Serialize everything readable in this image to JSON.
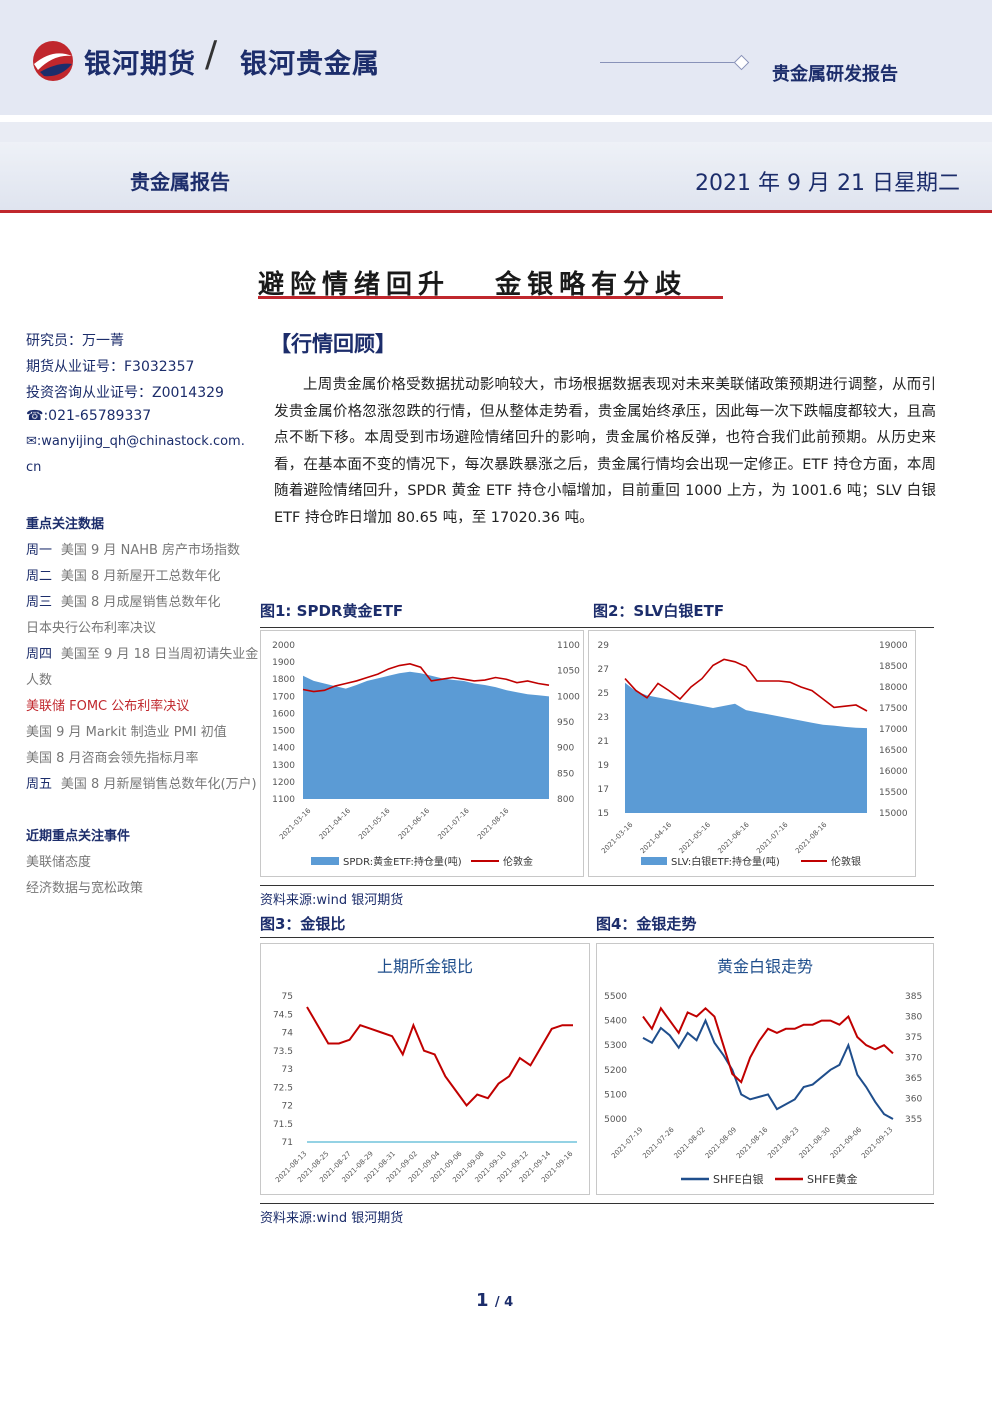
{
  "header": {
    "brand_main": "银河期货",
    "brand_sub": "银河贵金属",
    "report_type": "贵金属研发报告",
    "category": "贵金属报告",
    "date": "2021 年 9 月 21 日星期二"
  },
  "title": "避险情绪回升   金银略有分歧",
  "sidebar": {
    "researcher": "研究员：万一菁",
    "license": "期货从业证号：F3032357",
    "consult": "投资咨询从业证号：Z0014329",
    "phone": "☎:021-65789337",
    "email1": "✉:wanyijing_qh@chinastock.com.",
    "email2": "cn",
    "focus_head": "重点关注数据",
    "focus_items": [
      {
        "day": "周一",
        "text": "美国 9 月 NAHB 房产市场指数"
      },
      {
        "day": "周二",
        "text": "美国 8 月新屋开工总数年化"
      },
      {
        "day": "周三",
        "text": "美国 8 月成屋销售总数年化"
      },
      {
        "day": "",
        "text": "日本央行公布利率决议"
      },
      {
        "day": "周四",
        "text": "美国至 9 月 18 日当周初请失业金"
      },
      {
        "day": "",
        "text": "人数"
      },
      {
        "day": "",
        "text": "美联储 FOMC 公布利率决议"
      },
      {
        "day": "",
        "text": "美国 9 月 Markit 制造业 PMI 初值"
      },
      {
        "day": "",
        "text": "美国 8 月咨商会领先指标月率"
      },
      {
        "day": "周五",
        "text": "美国 8 月新屋销售总数年化(万户)"
      }
    ],
    "events_head": "近期重点关注事件",
    "events": [
      "美联储态度",
      "经济数据与宽松政策"
    ]
  },
  "section": {
    "title": "【行情回顾】",
    "paragraph": "上周贵金属价格受数据扰动影响较大，市场根据数据表现对未来美联储政策预期进行调整，从而引发贵金属价格忽涨忽跌的行情，但从整体走势看，贵金属始终承压，因此每一次下跌幅度都较大，且高点不断下移。本周受到市场避险情绪回升的影响，贵金属价格反弹，也符合我们此前预期。从历史来看，在基本面不变的情况下，每次暴跌暴涨之后，贵金属行情均会出现一定修正。ETF 持仓方面，本周随着避险情绪回升，SPDR 黄金 ETF 持仓小幅增加，目前重回 1000 上方，为 1001.6 吨；SLV 白银 ETF 持仓昨日增加 80.65 吨，至 17020.36 吨。"
  },
  "figures": {
    "fig1_label": "图1: SPDR黄金ETF",
    "fig2_label": "图2：SLV白银ETF",
    "fig3_label": "图3：金银比",
    "fig4_label": "图4：金银走势",
    "source1": "资料来源:wind    银河期货",
    "source2": "资料来源:wind    银河期货"
  },
  "chart_data": [
    {
      "type": "area+line",
      "series": [
        {
          "name": "SPDR:黄金ETF:持仓量(吨)",
          "axis": "left",
          "values": [
            1040,
            1030,
            1025,
            1020,
            1015,
            1022,
            1030,
            1035,
            1040,
            1045,
            1048,
            1045,
            1040,
            1035,
            1032,
            1030,
            1025,
            1022,
            1018,
            1012,
            1008,
            1004,
            1002,
            1000
          ]
        },
        {
          "name": "伦敦金",
          "axis": "right",
          "values": [
            1740,
            1728,
            1735,
            1760,
            1775,
            1790,
            1810,
            1830,
            1860,
            1880,
            1890,
            1870,
            1790,
            1800,
            1810,
            1800,
            1790,
            1795,
            1810,
            1800,
            1780,
            1790,
            1775,
            1765
          ]
        }
      ],
      "x_ticks": [
        "2021-03-16",
        "2021-04-16",
        "2021-05-16",
        "2021-06-16",
        "2021-07-16",
        "2021-08-16"
      ],
      "ylim_left": [
        1100,
        2000
      ],
      "left_ticks": [
        "2000",
        "1900",
        "1800",
        "1700",
        "1600",
        "1500",
        "1400",
        "1300",
        "1200",
        "1100"
      ],
      "right_ticks": [
        "1100",
        "1050",
        "1000",
        "950",
        "900",
        "850",
        "800"
      ]
    },
    {
      "type": "area+line",
      "series": [
        {
          "name": "SLV:白银ETF:持仓量(吨)",
          "axis": "right",
          "values": [
            18100,
            17900,
            17800,
            17750,
            17700,
            17650,
            17600,
            17550,
            17500,
            17550,
            17600,
            17450,
            17400,
            17350,
            17300,
            17250,
            17200,
            17150,
            17100,
            17080,
            17050,
            17030,
            17020
          ]
        },
        {
          "name": "伦敦银",
          "axis": "left",
          "values": [
            26.2,
            25.2,
            24.6,
            25.8,
            25.2,
            24.5,
            25.5,
            26.2,
            27.3,
            27.8,
            27.6,
            27.2,
            26.0,
            26.0,
            26.0,
            25.9,
            25.5,
            25.2,
            24.5,
            23.8,
            23.9,
            24.0,
            23.5
          ]
        }
      ],
      "x_ticks": [
        "2021-03-16",
        "2021-04-16",
        "2021-05-16",
        "2021-06-16",
        "2021-07-16",
        "2021-08-16"
      ],
      "left_ticks": [
        "29",
        "27",
        "25",
        "23",
        "21",
        "19",
        "17",
        "15"
      ],
      "right_ticks": [
        "19000",
        "18500",
        "18000",
        "17500",
        "17000",
        "16500",
        "16000",
        "15500",
        "15000"
      ],
      "ylim_left": [
        15,
        29
      ],
      "ylim_right": [
        15000,
        19000
      ]
    },
    {
      "type": "line",
      "title": "上期所金银比",
      "x_ticks": [
        "2021-08-13",
        "2021-08-25",
        "2021-08-27",
        "2021-08-29",
        "2021-08-31",
        "2021-09-02",
        "2021-09-04",
        "2021-09-06",
        "2021-09-08",
        "2021-09-10",
        "2021-09-12",
        "2021-09-14",
        "2021-09-16"
      ],
      "values": [
        74.7,
        74.2,
        73.7,
        73.7,
        73.8,
        74.2,
        74.1,
        74.0,
        73.9,
        73.4,
        74.2,
        73.5,
        73.4,
        72.8,
        72.4,
        72.0,
        72.3,
        72.2,
        72.6,
        72.8,
        73.3,
        73.1,
        73.6,
        74.1,
        74.2,
        74.2
      ],
      "ylim": [
        71,
        75
      ],
      "y_ticks": [
        "75",
        "74.5",
        "74",
        "73.5",
        "73",
        "72.5",
        "72",
        "71.5",
        "71"
      ]
    },
    {
      "type": "line",
      "title": "黄金白银走势",
      "x_ticks": [
        "2021-07-19",
        "2021-07-26",
        "2021-08-02",
        "2021-08-09",
        "2021-08-16",
        "2021-08-23",
        "2021-08-30",
        "2021-09-06",
        "2021-09-13"
      ],
      "series": [
        {
          "name": "SHFE白银",
          "axis": "left",
          "values": [
            5330,
            5310,
            5370,
            5340,
            5290,
            5350,
            5320,
            5400,
            5310,
            5260,
            5200,
            5100,
            5080,
            5090,
            5100,
            5040,
            5060,
            5080,
            5130,
            5140,
            5170,
            5200,
            5220,
            5300,
            5180,
            5130,
            5070,
            5020,
            5000
          ]
        },
        {
          "name": "SHFE黄金",
          "axis": "right",
          "values": [
            380,
            377,
            382,
            379,
            376,
            381,
            380,
            382,
            380,
            373,
            366,
            364,
            370,
            374,
            377,
            376,
            377,
            377,
            378,
            378,
            379,
            379,
            378,
            380,
            375,
            373,
            372,
            373,
            371
          ]
        }
      ],
      "ylim_left": [
        5000,
        5500
      ],
      "ylim_right": [
        355,
        385
      ],
      "left_ticks": [
        "5500",
        "5400",
        "5300",
        "5200",
        "5100",
        "5000"
      ],
      "right_ticks": [
        "385",
        "380",
        "375",
        "370",
        "365",
        "360",
        "355"
      ]
    }
  ],
  "footer": {
    "page": "1",
    "total": "4"
  }
}
